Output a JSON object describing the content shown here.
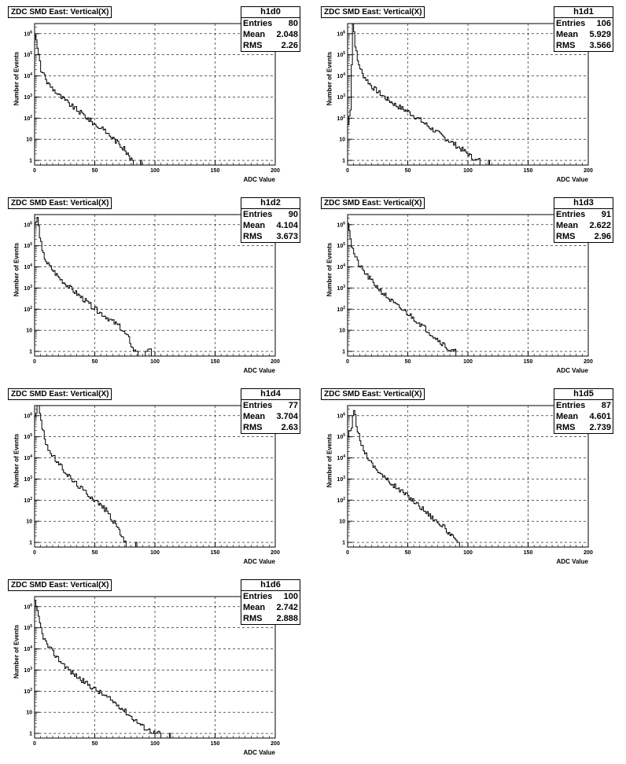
{
  "chart_data": [
    {
      "type": "histogram",
      "name": "h1d0",
      "title": "ZDC SMD East: Vertical(X)",
      "xlabel": "ADC Value",
      "ylabel": "Number of Events",
      "stats": {
        "entries_label": "Entries",
        "mean_label": "Mean",
        "rms_label": "RMS",
        "entries": "80",
        "mean": "2.048",
        "rms": "2.26"
      },
      "xlim": [
        0,
        200
      ],
      "ylog": true,
      "ylim": [
        0.6,
        3000000
      ],
      "grid": true,
      "xticks": [
        "0",
        "50",
        "100",
        "150",
        "200"
      ],
      "yticks": [
        "1",
        "10",
        "10^2",
        "10^3",
        "10^4",
        "10^5",
        "10^6"
      ],
      "profile": [
        [
          0,
          1000000
        ],
        [
          2,
          200000
        ],
        [
          5,
          20000
        ],
        [
          10,
          5000
        ],
        [
          20,
          1200
        ],
        [
          30,
          400
        ],
        [
          40,
          150
        ],
        [
          50,
          50
        ],
        [
          60,
          20
        ],
        [
          70,
          6
        ],
        [
          75,
          3
        ],
        [
          80,
          1
        ],
        [
          82,
          0
        ],
        [
          88,
          1
        ],
        [
          89,
          0
        ]
      ]
    },
    {
      "type": "histogram",
      "name": "h1d1",
      "title": "ZDC SMD East: Vertical(X)",
      "xlabel": "ADC Value",
      "ylabel": "Number of Events",
      "stats": {
        "entries_label": "Entries",
        "mean_label": "Mean",
        "rms_label": "RMS",
        "entries": "106",
        "mean": "5.929",
        "rms": "3.566"
      },
      "xlim": [
        0,
        200
      ],
      "ylog": true,
      "ylim": [
        0.6,
        3000000
      ],
      "grid": true,
      "xticks": [
        "0",
        "50",
        "100",
        "150",
        "200"
      ],
      "yticks": [
        "1",
        "10",
        "10^2",
        "10^3",
        "10^4",
        "10^5",
        "10^6"
      ],
      "profile": [
        [
          0,
          50
        ],
        [
          2,
          300
        ],
        [
          4,
          5000000
        ],
        [
          6,
          300000
        ],
        [
          8,
          50000
        ],
        [
          12,
          12000
        ],
        [
          20,
          3000
        ],
        [
          30,
          1000
        ],
        [
          40,
          400
        ],
        [
          50,
          200
        ],
        [
          60,
          80
        ],
        [
          70,
          30
        ],
        [
          80,
          12
        ],
        [
          90,
          5
        ],
        [
          100,
          2
        ],
        [
          105,
          1
        ],
        [
          110,
          0
        ],
        [
          117,
          1
        ],
        [
          118,
          0
        ]
      ]
    },
    {
      "type": "histogram",
      "name": "h1d2",
      "title": "ZDC SMD East: Vertical(X)",
      "xlabel": "ADC Value",
      "ylabel": "Number of Events",
      "stats": {
        "entries_label": "Entries",
        "mean_label": "Mean",
        "rms_label": "RMS",
        "entries": "90",
        "mean": "4.104",
        "rms": "3.673"
      },
      "xlim": [
        0,
        200
      ],
      "ylog": true,
      "ylim": [
        0.6,
        3000000
      ],
      "grid": true,
      "xticks": [
        "0",
        "50",
        "100",
        "150",
        "200"
      ],
      "yticks": [
        "1",
        "10",
        "10^2",
        "10^3",
        "10^4",
        "10^5",
        "10^6"
      ],
      "profile": [
        [
          0,
          1000000
        ],
        [
          2,
          2000000
        ],
        [
          4,
          300000
        ],
        [
          6,
          50000
        ],
        [
          10,
          15000
        ],
        [
          20,
          3000
        ],
        [
          30,
          900
        ],
        [
          40,
          300
        ],
        [
          50,
          100
        ],
        [
          60,
          40
        ],
        [
          70,
          15
        ],
        [
          78,
          4
        ],
        [
          82,
          1
        ],
        [
          86,
          0
        ],
        [
          92,
          1
        ],
        [
          97,
          0
        ]
      ]
    },
    {
      "type": "histogram",
      "name": "h1d3",
      "title": "ZDC SMD East: Vertical(X)",
      "xlabel": "ADC Value",
      "ylabel": "Number of Events",
      "stats": {
        "entries_label": "Entries",
        "mean_label": "Mean",
        "rms_label": "RMS",
        "entries": "91",
        "mean": "2.622",
        "rms": "2.96"
      },
      "xlim": [
        0,
        200
      ],
      "ylog": true,
      "ylim": [
        0.6,
        3000000
      ],
      "grid": true,
      "xticks": [
        "0",
        "50",
        "100",
        "150",
        "200"
      ],
      "yticks": [
        "1",
        "10",
        "10^2",
        "10^3",
        "10^4",
        "10^5",
        "10^6"
      ],
      "profile": [
        [
          0,
          1500000
        ],
        [
          3,
          100000
        ],
        [
          6,
          30000
        ],
        [
          10,
          10000
        ],
        [
          20,
          2000
        ],
        [
          30,
          500
        ],
        [
          40,
          150
        ],
        [
          50,
          60
        ],
        [
          60,
          20
        ],
        [
          70,
          6
        ],
        [
          80,
          2
        ],
        [
          85,
          1
        ],
        [
          90,
          0
        ],
        [
          95,
          0
        ]
      ]
    },
    {
      "type": "histogram",
      "name": "h1d4",
      "title": "ZDC SMD East: Vertical(X)",
      "xlabel": "ADC Value",
      "ylabel": "Number of Events",
      "stats": {
        "entries_label": "Entries",
        "mean_label": "Mean",
        "rms_label": "RMS",
        "entries": "77",
        "mean": "3.704",
        "rms": "2.63"
      },
      "xlim": [
        0,
        200
      ],
      "ylog": true,
      "ylim": [
        0.6,
        3000000
      ],
      "grid": true,
      "xticks": [
        "0",
        "50",
        "100",
        "150",
        "200"
      ],
      "yticks": [
        "1",
        "10",
        "10^2",
        "10^3",
        "10^4",
        "10^5",
        "10^6"
      ],
      "profile": [
        [
          0,
          1000000
        ],
        [
          3,
          4000000
        ],
        [
          5,
          500000
        ],
        [
          8,
          80000
        ],
        [
          12,
          20000
        ],
        [
          20,
          5000
        ],
        [
          30,
          1000
        ],
        [
          40,
          300
        ],
        [
          50,
          100
        ],
        [
          60,
          30
        ],
        [
          65,
          10
        ],
        [
          70,
          4
        ],
        [
          74,
          1
        ],
        [
          76,
          0
        ],
        [
          84,
          1
        ],
        [
          85,
          0
        ]
      ]
    },
    {
      "type": "histogram",
      "name": "h1d5",
      "title": "ZDC SMD East: Vertical(X)",
      "xlabel": "ADC Value",
      "ylabel": "Number of Events",
      "stats": {
        "entries_label": "Entries",
        "mean_label": "Mean",
        "rms_label": "RMS",
        "entries": "87",
        "mean": "4.601",
        "rms": "2.739"
      },
      "xlim": [
        0,
        200
      ],
      "ylog": true,
      "ylim": [
        0.6,
        3000000
      ],
      "grid": true,
      "xticks": [
        "0",
        "50",
        "100",
        "150",
        "200"
      ],
      "yticks": [
        "1",
        "10",
        "10^2",
        "10^3",
        "10^4",
        "10^5",
        "10^6"
      ],
      "profile": [
        [
          0,
          100000
        ],
        [
          3,
          300000
        ],
        [
          5,
          2000000
        ],
        [
          7,
          400000
        ],
        [
          10,
          60000
        ],
        [
          15,
          15000
        ],
        [
          20,
          5000
        ],
        [
          30,
          1200
        ],
        [
          40,
          400
        ],
        [
          50,
          150
        ],
        [
          60,
          50
        ],
        [
          70,
          15
        ],
        [
          80,
          5
        ],
        [
          86,
          2
        ],
        [
          90,
          1
        ],
        [
          93,
          0
        ]
      ]
    },
    {
      "type": "histogram",
      "name": "h1d6",
      "title": "ZDC SMD East: Vertical(X)",
      "xlabel": "ADC Value",
      "ylabel": "Number of Events",
      "stats": {
        "entries_label": "Entries",
        "mean_label": "Mean",
        "rms_label": "RMS",
        "entries": "100",
        "mean": "2.742",
        "rms": "2.888"
      },
      "xlim": [
        0,
        200
      ],
      "ylog": true,
      "ylim": [
        0.6,
        3000000
      ],
      "grid": true,
      "xticks": [
        "0",
        "50",
        "100",
        "150",
        "200"
      ],
      "yticks": [
        "1",
        "10",
        "10^2",
        "10^3",
        "10^4",
        "10^5",
        "10^6"
      ],
      "profile": [
        [
          0,
          1500000
        ],
        [
          3,
          300000
        ],
        [
          6,
          50000
        ],
        [
          10,
          15000
        ],
        [
          20,
          3000
        ],
        [
          30,
          800
        ],
        [
          40,
          300
        ],
        [
          50,
          120
        ],
        [
          60,
          50
        ],
        [
          70,
          20
        ],
        [
          80,
          6
        ],
        [
          90,
          2
        ],
        [
          100,
          1
        ],
        [
          105,
          0
        ],
        [
          112,
          1
        ],
        [
          113,
          0
        ]
      ]
    }
  ]
}
